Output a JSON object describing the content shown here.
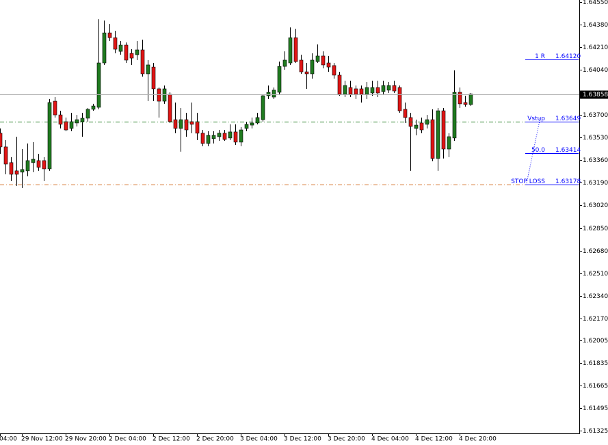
{
  "chart_data": {
    "type": "candlestick",
    "categories": [
      "04:00",
      null,
      null,
      null,
      "29 Nov 12:00",
      null,
      null,
      null,
      null,
      null,
      null,
      null,
      "29 Nov 20:00",
      null,
      null,
      null,
      null,
      null,
      null,
      null,
      "2 Dec 04:00",
      null,
      null,
      null,
      null,
      null,
      null,
      null,
      "2 Dec 12:00",
      null,
      null,
      null,
      null,
      null,
      null,
      null,
      "2 Dec 20:00",
      null,
      null,
      null,
      null,
      null,
      null,
      null,
      "3 Dec 04:00",
      null,
      null,
      null,
      null,
      null,
      null,
      null,
      "3 Dec 12:00",
      null,
      null,
      null,
      null,
      null,
      null,
      null,
      "3 Dec 20:00",
      null,
      null,
      null,
      null,
      null,
      null,
      null,
      "4 Dec 04:00",
      null,
      null,
      null,
      null,
      null,
      null,
      null,
      "4 Dec 12:00",
      null,
      null,
      null,
      null,
      null,
      null,
      null,
      "4 Dec 20:00",
      null,
      null
    ],
    "open": [
      1.63563,
      1.6346,
      1.63342,
      1.6328,
      1.6327,
      1.6328,
      1.63342,
      1.63357,
      1.63357,
      1.63295,
      1.63804,
      1.63701,
      1.6365,
      1.63599,
      1.6364,
      1.6365,
      1.63676,
      1.63743,
      1.63758,
      1.64092,
      1.64318,
      1.64282,
      1.64179,
      1.64226,
      1.64164,
      1.64154,
      1.6419,
      1.6401,
      1.64061,
      1.63897,
      1.63804,
      1.63856,
      1.63665,
      1.63599,
      1.63665,
      1.6365,
      1.6365,
      1.63563,
      1.63486,
      1.63522,
      1.63537,
      1.63563,
      1.63527,
      1.63573,
      1.63496,
      1.63599,
      1.63624,
      1.6364,
      1.63665,
      1.63845,
      1.63835,
      1.63871,
      1.64066,
      1.64092,
      1.64282,
      1.64113,
      1.64025,
      1.6401,
      1.64102,
      1.64144,
      1.64092,
      1.64072,
      1.64,
      1.63856,
      1.63907,
      1.63897,
      1.63897,
      1.63856,
      1.63866,
      1.63907,
      1.63876,
      1.63887,
      1.63922,
      1.63907,
      1.63743,
      1.63681,
      1.63599,
      1.6364,
      1.6363,
      1.63665,
      1.63373,
      1.63732,
      1.63444,
      1.63527,
      1.63871,
      1.63794,
      1.63779
    ],
    "high": [
      1.63599,
      1.63511,
      1.63383,
      1.63537,
      1.63444,
      1.63486,
      1.63496,
      1.63408,
      1.63383,
      1.6382,
      1.63835,
      1.63732,
      1.63681,
      1.63717,
      1.63701,
      1.63717,
      1.63753,
      1.63784,
      1.64421,
      1.64411,
      1.64385,
      1.64334,
      1.64257,
      1.64246,
      1.64195,
      1.64257,
      1.64267,
      1.64113,
      1.64092,
      1.63907,
      1.63922,
      1.63871,
      1.63794,
      1.63753,
      1.63717,
      1.63794,
      1.63717,
      1.63588,
      1.63578,
      1.63578,
      1.63588,
      1.63588,
      1.6363,
      1.6363,
      1.63609,
      1.6365,
      1.63681,
      1.63717,
      1.63856,
      1.63922,
      1.63907,
      1.64102,
      1.64179,
      1.64359,
      1.64349,
      1.64154,
      1.64092,
      1.64164,
      1.64231,
      1.64179,
      1.64144,
      1.64092,
      1.64025,
      1.63958,
      1.63958,
      1.63922,
      1.63922,
      1.63948,
      1.63958,
      1.63958,
      1.63958,
      1.63948,
      1.63958,
      1.63922,
      1.63794,
      1.63717,
      1.63665,
      1.63681,
      1.63701,
      1.63743,
      1.63753,
      1.63753,
      1.63563,
      1.64036,
      1.63907,
      1.63845,
      1.63866
    ],
    "low": [
      1.63408,
      1.63254,
      1.63203,
      1.63167,
      1.63151,
      1.63239,
      1.6327,
      1.6328,
      1.63203,
      1.6328,
      1.63681,
      1.63599,
      1.63578,
      1.63578,
      1.63614,
      1.63537,
      1.6365,
      1.63732,
      1.63743,
      1.64077,
      1.64257,
      1.64164,
      1.64154,
      1.64092,
      1.64077,
      1.64113,
      1.63989,
      1.63804,
      1.63804,
      1.63681,
      1.63784,
      1.6364,
      1.63563,
      1.63424,
      1.63537,
      1.63563,
      1.63511,
      1.63465,
      1.63465,
      1.63486,
      1.63506,
      1.63506,
      1.63511,
      1.63475,
      1.63465,
      1.63578,
      1.63599,
      1.6363,
      1.6365,
      1.6382,
      1.6382,
      1.63856,
      1.64041,
      1.64077,
      1.64092,
      1.6401,
      1.63897,
      1.63974,
      1.64092,
      1.64051,
      1.64025,
      1.63974,
      1.63845,
      1.63835,
      1.63835,
      1.6382,
      1.63794,
      1.6382,
      1.63845,
      1.63835,
      1.63856,
      1.63866,
      1.63866,
      1.63717,
      1.6364,
      1.6328,
      1.63547,
      1.63563,
      1.63599,
      1.63352,
      1.6328,
      1.63373,
      1.63383,
      1.63506,
      1.63753,
      1.63763,
      1.63768
    ],
    "close": [
      1.6346,
      1.63331,
      1.63254,
      1.63254,
      1.6329,
      1.63357,
      1.63367,
      1.63306,
      1.63295,
      1.63794,
      1.63701,
      1.6363,
      1.63588,
      1.6365,
      1.63665,
      1.63676,
      1.63743,
      1.63768,
      1.64092,
      1.64318,
      1.64282,
      1.64195,
      1.64226,
      1.64113,
      1.64128,
      1.6419,
      1.6401,
      1.64077,
      1.63897,
      1.63804,
      1.63897,
      1.6365,
      1.63599,
      1.63665,
      1.63588,
      1.6363,
      1.63563,
      1.63486,
      1.63547,
      1.63547,
      1.63563,
      1.63516,
      1.63573,
      1.63496,
      1.63588,
      1.6363,
      1.6364,
      1.63681,
      1.63845,
      1.63871,
      1.63887,
      1.64066,
      1.64113,
      1.64282,
      1.64102,
      1.64025,
      1.6401,
      1.64113,
      1.64144,
      1.64077,
      1.64061,
      1.64,
      1.63856,
      1.63922,
      1.63856,
      1.63856,
      1.63856,
      1.63907,
      1.63907,
      1.63866,
      1.63922,
      1.63922,
      1.63881,
      1.63732,
      1.63681,
      1.63614,
      1.63624,
      1.63588,
      1.63665,
      1.63373,
      1.63732,
      1.63444,
      1.63537,
      1.63871,
      1.63784,
      1.63779,
      1.63858
    ],
    "up_color": "#1f7a1f",
    "down_color": "#e01515",
    "ylim": [
      1.61325,
      1.6455
    ],
    "yticks": [
      {
        "value": 1.6455,
        "label": "1.64550"
      },
      {
        "value": 1.6438,
        "label": "1.64380"
      },
      {
        "value": 1.6421,
        "label": "1.64210"
      },
      {
        "value": 1.6404,
        "label": "1.64040"
      },
      {
        "value": 1.637,
        "label": "1.63700"
      },
      {
        "value": 1.6353,
        "label": "1.63530"
      },
      {
        "value": 1.6336,
        "label": "1.63360"
      },
      {
        "value": 1.6319,
        "label": "1.63190"
      },
      {
        "value": 1.6302,
        "label": "1.63020"
      },
      {
        "value": 1.6285,
        "label": "1.62850"
      },
      {
        "value": 1.6268,
        "label": "1.62680"
      },
      {
        "value": 1.6251,
        "label": "1.62510"
      },
      {
        "value": 1.6234,
        "label": "1.62340"
      },
      {
        "value": 1.6217,
        "label": "1.62170"
      },
      {
        "value": 1.62005,
        "label": "1.62005"
      },
      {
        "value": 1.61835,
        "label": "1.61835"
      },
      {
        "value": 1.61665,
        "label": "1.61665"
      },
      {
        "value": 1.61495,
        "label": "1.61495"
      },
      {
        "value": 1.61325,
        "label": "1.61325"
      }
    ],
    "last_price": {
      "value": 1.63858,
      "label": "1.63858"
    },
    "levels": [
      {
        "name": "1 R",
        "value": 1.6412,
        "label": "1.64120",
        "color": "#0000ff",
        "extend": false
      },
      {
        "name": "Vstup",
        "value": 1.63649,
        "label": "1.63649",
        "color": "#1f7a1f",
        "extend": true
      },
      {
        "name": "50.0",
        "value": 1.63414,
        "label": "1.63414",
        "color": "#0000ff",
        "extend": false
      },
      {
        "name": "STOP LOSS",
        "value": 1.63178,
        "label": "1.63178",
        "color": "#d2691e",
        "extend": true
      }
    ]
  }
}
